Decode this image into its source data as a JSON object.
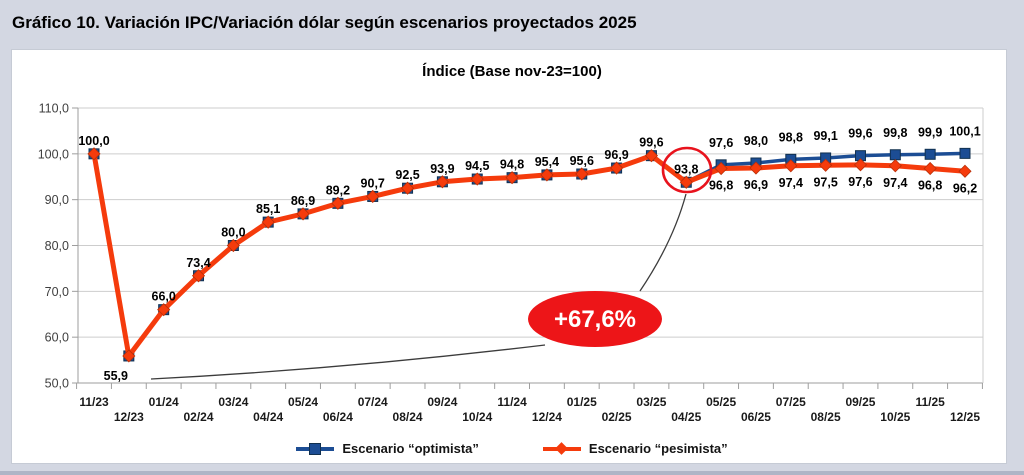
{
  "page_title": "Gráfico 10. Variación IPC/Variación dólar según escenarios proyectados 2025",
  "chart_data": {
    "type": "line",
    "title": "Índice (Base nov-23=100)",
    "x_labels": [
      "11/23",
      "12/23",
      "01/24",
      "02/24",
      "03/24",
      "04/24",
      "05/24",
      "06/24",
      "07/24",
      "08/24",
      "09/24",
      "10/24",
      "11/24",
      "12/24",
      "01/25",
      "02/25",
      "03/25",
      "04/25",
      "05/25",
      "06/25",
      "07/25",
      "08/25",
      "09/25",
      "10/25",
      "11/25",
      "12/25"
    ],
    "y_ticks": [
      "110,0",
      "100,0",
      "90,0",
      "80,0",
      "70,0",
      "60,0",
      "50,0"
    ],
    "ylim": [
      50,
      110
    ],
    "grid": true,
    "legend_position": "bottom",
    "series": [
      {
        "name": "Escenario “optimista”",
        "color": "#1c4d94",
        "marker": "square",
        "values": [
          100.0,
          55.9,
          66.0,
          73.4,
          80.0,
          85.1,
          86.9,
          89.2,
          90.7,
          92.5,
          93.9,
          94.5,
          94.8,
          95.4,
          95.6,
          96.9,
          99.6,
          93.8,
          97.6,
          98.0,
          98.8,
          99.1,
          99.6,
          99.8,
          99.9,
          100.1
        ],
        "labels": [
          "100,0",
          "55,9",
          "66,0",
          "73,4",
          "80,0",
          "85,1",
          "86,9",
          "89,2",
          "90,7",
          "92,5",
          "93,9",
          "94,5",
          "94,8",
          "95,4",
          "95,6",
          "96,9",
          "99,6",
          "93,8",
          "97,6",
          "98,0",
          "98,8",
          "99,1",
          "99,6",
          "99,8",
          "99,9",
          "100,1"
        ]
      },
      {
        "name": "Escenario “pesimista”",
        "color": "#f53b0c",
        "marker": "diamond",
        "values": [
          100.0,
          55.9,
          66.0,
          73.4,
          80.0,
          85.1,
          86.9,
          89.2,
          90.7,
          92.5,
          93.9,
          94.5,
          94.8,
          95.4,
          95.6,
          96.9,
          99.6,
          93.8,
          96.8,
          96.9,
          97.4,
          97.5,
          97.6,
          97.4,
          96.8,
          96.2
        ],
        "labels": [
          "",
          "",
          "",
          "",
          "",
          "",
          "",
          "",
          "",
          "",
          "",
          "",
          "",
          "",
          "",
          "",
          "",
          "",
          "96,8",
          "96,9",
          "97,4",
          "97,5",
          "97,6",
          "97,4",
          "96,8",
          "96,2"
        ]
      }
    ],
    "annotations": {
      "gain_badge": {
        "text": "+67,6%",
        "fill": "#ed1518",
        "text_color": "#ffffff"
      },
      "highlight_circle": {
        "color": "#e8131d",
        "point_label": "93,8"
      }
    }
  }
}
